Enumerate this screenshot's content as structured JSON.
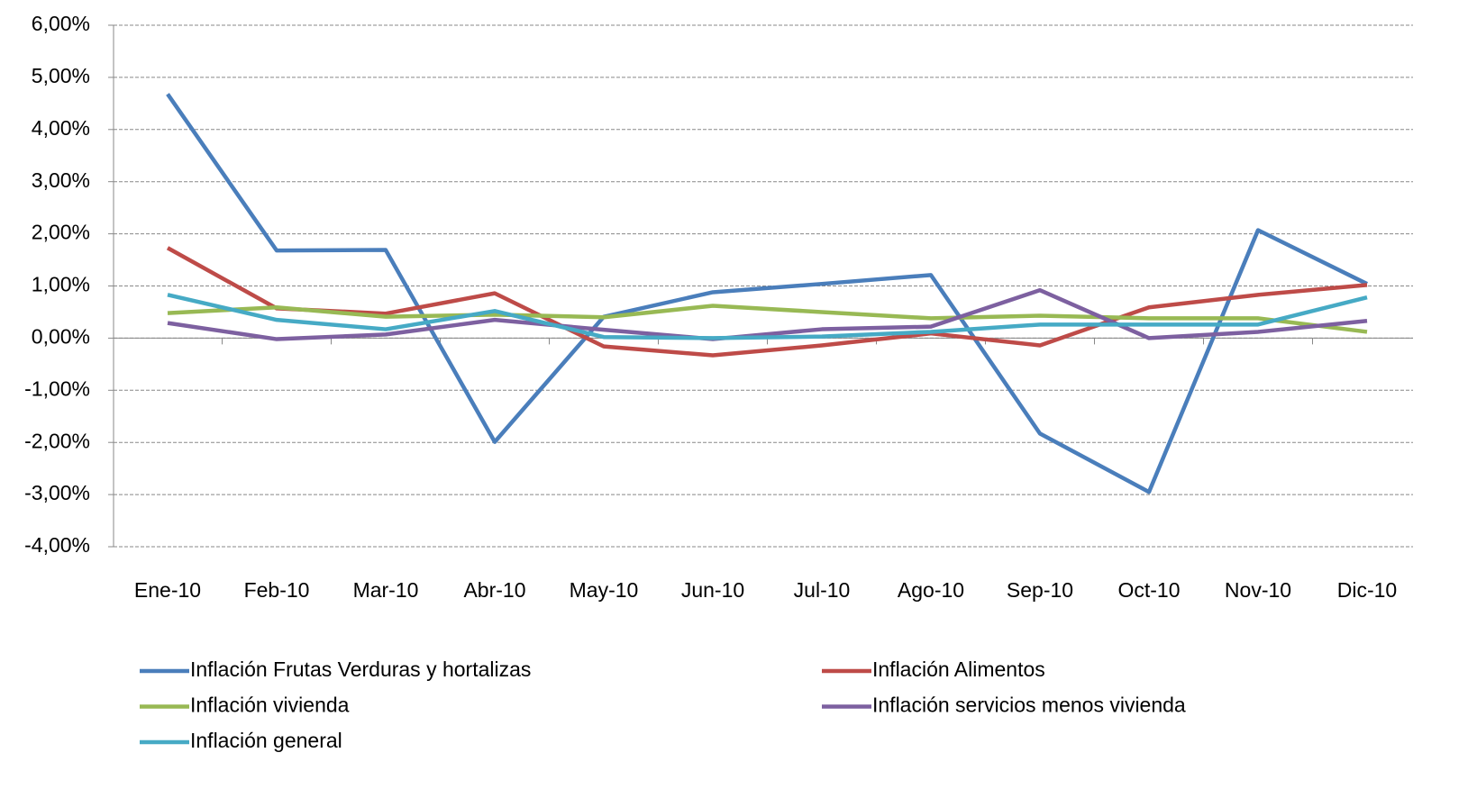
{
  "chart_data": {
    "type": "line",
    "categories": [
      "Ene-10",
      "Feb-10",
      "Mar-10",
      "Abr-10",
      "May-10",
      "Jun-10",
      "Jul-10",
      "Ago-10",
      "Sep-10",
      "Oct-10",
      "Nov-10",
      "Dic-10"
    ],
    "series": [
      {
        "name": "Inflación Frutas Verduras y hortalizas",
        "color": "#4a7ebb",
        "values": [
          4.68,
          1.68,
          1.69,
          -1.99,
          0.41,
          0.88,
          1.04,
          1.21,
          -1.83,
          -2.95,
          2.07,
          1.04
        ]
      },
      {
        "name": "Inflación Alimentos",
        "color": "#be4b48",
        "values": [
          1.73,
          0.57,
          0.47,
          0.86,
          -0.16,
          -0.33,
          -0.14,
          0.09,
          -0.14,
          0.59,
          0.83,
          1.02
        ]
      },
      {
        "name": "Inflación vivienda",
        "color": "#98b954",
        "values": [
          0.48,
          0.59,
          0.41,
          0.45,
          0.4,
          0.62,
          0.5,
          0.38,
          0.43,
          0.38,
          0.38,
          0.12
        ]
      },
      {
        "name": "Inflación servicios menos vivienda",
        "color": "#7d60a0",
        "values": [
          0.29,
          -0.02,
          0.07,
          0.35,
          0.16,
          -0.02,
          0.17,
          0.22,
          0.92,
          0.0,
          0.12,
          0.33
        ]
      },
      {
        "name": "Inflación general",
        "color": "#46aac5",
        "values": [
          0.83,
          0.35,
          0.17,
          0.52,
          0.02,
          0.0,
          0.03,
          0.12,
          0.26,
          0.26,
          0.26,
          0.78
        ]
      }
    ],
    "ylim": [
      -4,
      6
    ],
    "yticks": [
      {
        "value": -4,
        "label": "-4,00%"
      },
      {
        "value": -3,
        "label": "-3,00%"
      },
      {
        "value": -2,
        "label": "-2,00%"
      },
      {
        "value": -1,
        "label": "-1,00%"
      },
      {
        "value": 0,
        "label": "0,00%"
      },
      {
        "value": 1,
        "label": "1,00%"
      },
      {
        "value": 2,
        "label": "2,00%"
      },
      {
        "value": 3,
        "label": "3,00%"
      },
      {
        "value": 4,
        "label": "4,00%"
      },
      {
        "value": 5,
        "label": "5,00%"
      },
      {
        "value": 6,
        "label": "6,00%"
      }
    ],
    "grid": true
  }
}
